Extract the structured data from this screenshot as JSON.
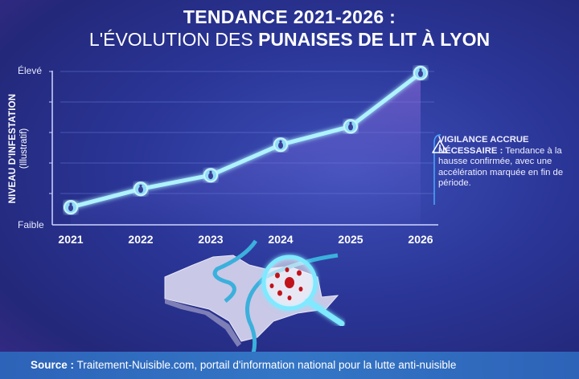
{
  "title": {
    "line1": "TENDANCE 2021-2026 :",
    "line2_light": "L'ÉVOLUTION DES",
    "line2_bold": "PUNAISES DE LIT À LYON"
  },
  "chart_data": {
    "type": "line",
    "title": "TENDANCE 2021-2026 : L'ÉVOLUTION DES PUNAISES DE LIT À LYON",
    "xlabel": "",
    "ylabel": "NIVEAU D'INFESTATION",
    "ylabel_sub": "(Illustratif)",
    "categories": [
      "2021",
      "2022",
      "2023",
      "2024",
      "2025",
      "2026"
    ],
    "values": [
      0.55,
      1.15,
      1.6,
      2.6,
      3.2,
      4.95
    ],
    "ylim": [
      0,
      5
    ],
    "y_tick_labels": {
      "low": "Faible",
      "high": "Élevé"
    },
    "grid": true,
    "line_color": "#7fe9ff",
    "marker_icon": "bedbug-icon"
  },
  "callout": {
    "icon": "warning-icon",
    "bold": "VIGILANCE ACCRUE NÉCESSAIRE :",
    "text": "Tendance à la hausse confirmée, avec une accélération marquée en fin de période."
  },
  "illustration": {
    "icon": "lyon-map-magnifier-bedbugs"
  },
  "footer": {
    "label": "Source :",
    "text": "Traitement-Nuisible.com, portail d'information national pour la lutte anti-nuisible"
  }
}
